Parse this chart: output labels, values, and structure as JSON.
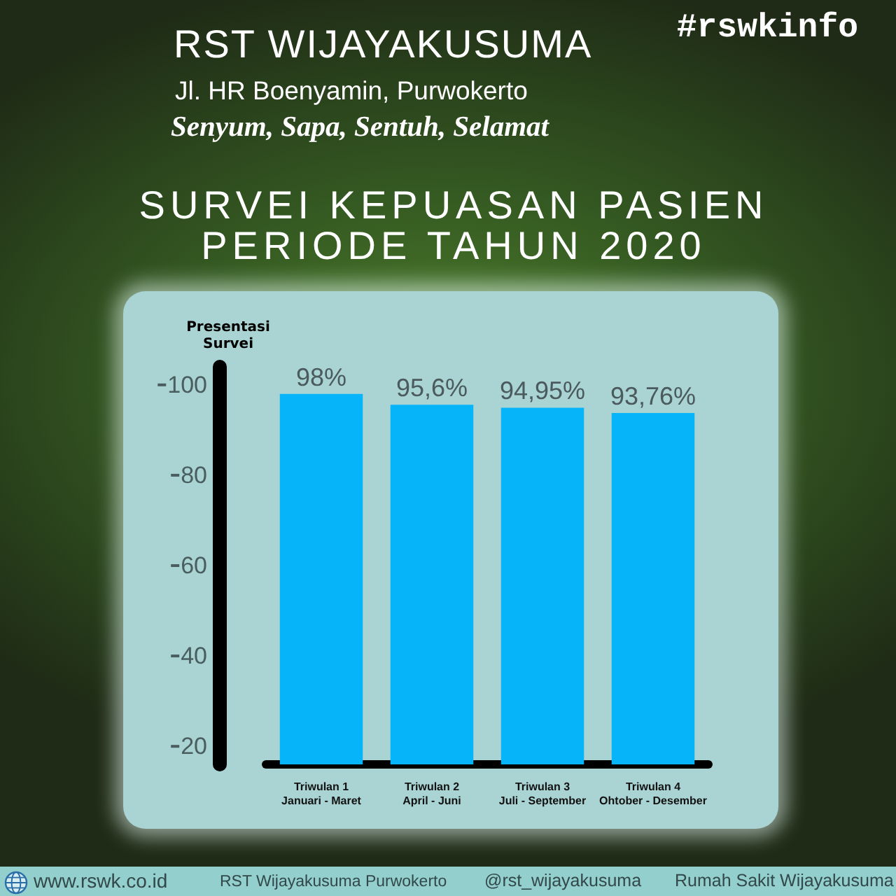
{
  "chart_data": {
    "type": "bar",
    "title": "SURVEI KEPUASAN PASIEN\nPERIODE TAHUN 2020",
    "ylabel": "Presentasi\nSurvei",
    "categories": [
      "Triwulan 1\nJanuari - Maret",
      "Triwulan 2\nApril - Juni",
      "Triwulan 3\nJuli - September",
      "Triwulan 4\nOhtober - Desember"
    ],
    "values": [
      98,
      95.6,
      94.95,
      93.76
    ],
    "value_labels": [
      "98%",
      "95,6%",
      "94,95%",
      "93,76%"
    ],
    "color": "#05b4f9",
    "ylim": [
      16,
      104
    ],
    "yticks": [
      20,
      40,
      60,
      80,
      100
    ],
    "annotations": [
      "RST WIJAYAKUSUMA",
      "Jl. HR Boenyamin, Purwokerto",
      "Senyum, Sapa, Sentuh, Selamat",
      "#rswkinfo",
      "www.rswk.co.id",
      "RST Wijayakusuma Purwokerto",
      "@rst_wijayakusuma",
      "Rumah Sakit Wijayakusuma"
    ]
  }
}
